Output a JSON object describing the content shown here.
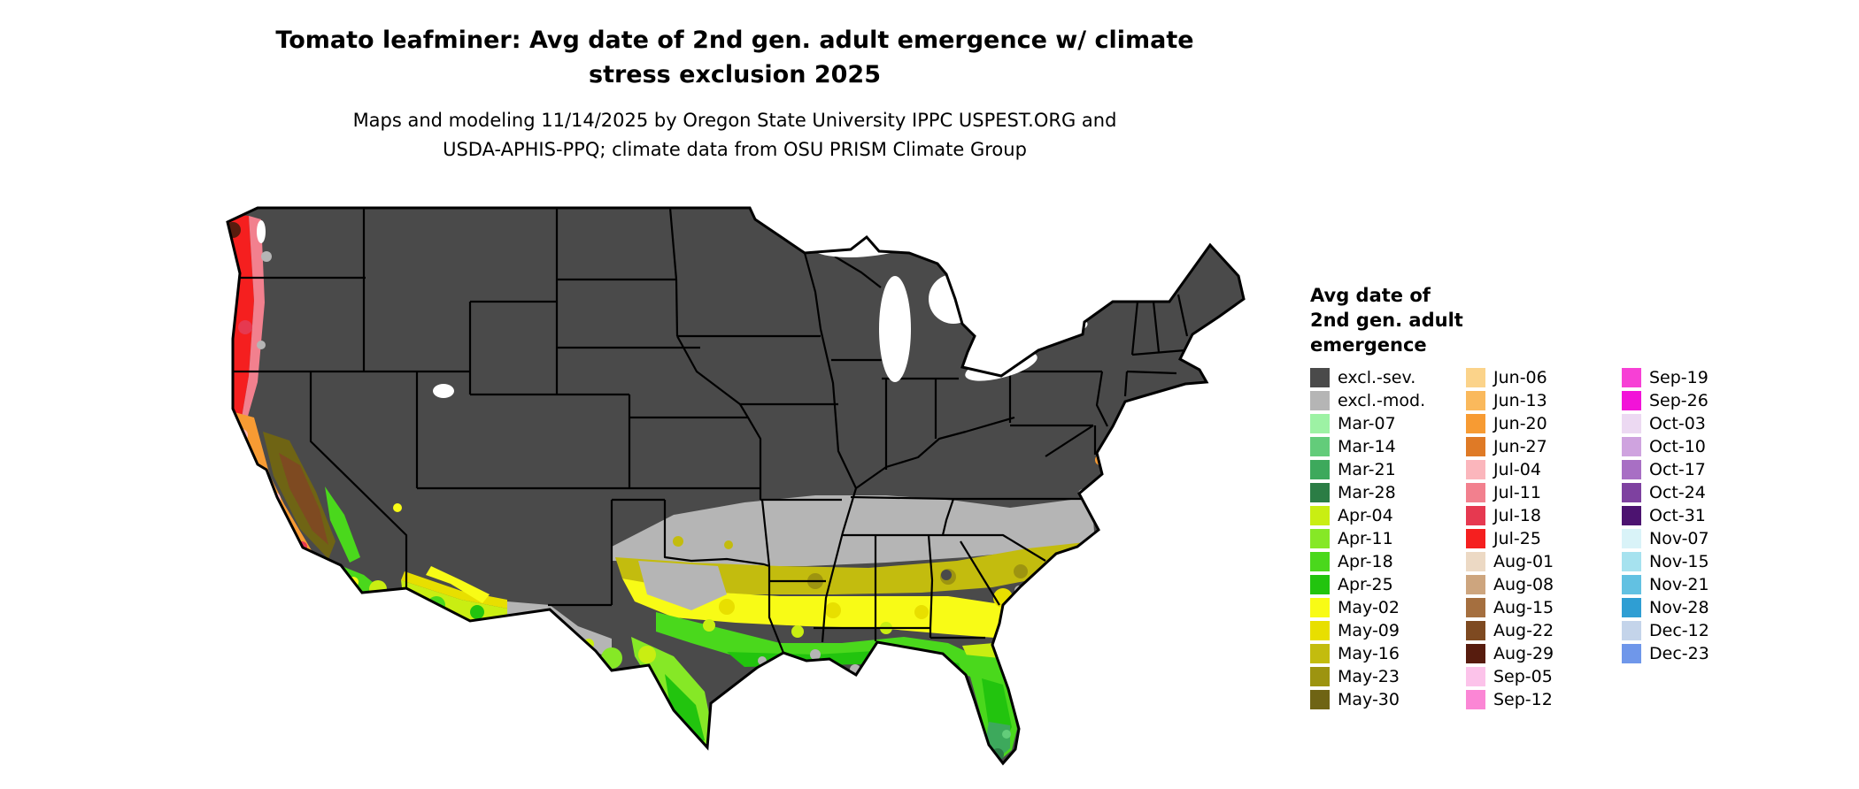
{
  "header": {
    "title_line1": "Tomato leafminer: Avg date of 2nd gen. adult emergence w/ climate",
    "title_line2": "stress exclusion 2025",
    "subtitle_line1": "Maps and modeling 11/14/2025 by Oregon State University IPPC USPEST.ORG and",
    "subtitle_line2": "USDA-APHIS-PPQ; climate data from OSU PRISM Climate Group"
  },
  "legend": {
    "title_lines": [
      "Avg date of",
      "2nd gen. adult",
      "emergence"
    ],
    "columns": [
      [
        "excl.-sev.",
        "excl.-mod.",
        "Mar-07",
        "Mar-14",
        "Mar-21",
        "Mar-28",
        "Apr-04",
        "Apr-11",
        "Apr-18",
        "Apr-25",
        "May-02",
        "May-09",
        "May-16",
        "May-23",
        "May-30"
      ],
      [
        "Jun-06",
        "Jun-13",
        "Jun-20",
        "Jun-27",
        "Jul-04",
        "Jul-11",
        "Jul-18",
        "Jul-25",
        "Aug-01",
        "Aug-08",
        "Aug-15",
        "Aug-22",
        "Aug-29",
        "Sep-05",
        "Sep-12"
      ],
      [
        "Sep-19",
        "Sep-26",
        "Oct-03",
        "Oct-10",
        "Oct-17",
        "Oct-24",
        "Oct-31",
        "Nov-07",
        "Nov-15",
        "Nov-21",
        "Nov-28",
        "Dec-12",
        "Dec-23"
      ]
    ]
  },
  "palette": {
    "excl.-sev.": "#4a4a4a",
    "excl.-mod.": "#b5b5b5",
    "Mar-07": "#9df2a4",
    "Mar-14": "#63cc7a",
    "Mar-21": "#3da95c",
    "Mar-28": "#2b7d45",
    "Apr-04": "#c9ee12",
    "Apr-11": "#86e826",
    "Apr-18": "#4ad81c",
    "Apr-25": "#22c40e",
    "May-02": "#f8fb16",
    "May-09": "#e8df00",
    "May-16": "#c3bc0e",
    "May-23": "#9d9410",
    "May-30": "#6f6414",
    "Jun-06": "#fbd38a",
    "Jun-13": "#fab95c",
    "Jun-20": "#f79b33",
    "Jun-27": "#df7a26",
    "Jul-04": "#fbb6bc",
    "Jul-11": "#f2808e",
    "Jul-18": "#e63950",
    "Jul-25": "#f51f1f",
    "Aug-01": "#ecd9c4",
    "Aug-08": "#cda57e",
    "Aug-15": "#a56f3f",
    "Aug-22": "#7e4a21",
    "Aug-29": "#571c0e",
    "Sep-05": "#fcc3ea",
    "Sep-12": "#fb86d5",
    "Sep-19": "#f740d5",
    "Sep-26": "#f213d8",
    "Oct-03": "#ecd9f2",
    "Oct-10": "#cfa3df",
    "Oct-17": "#a86fc4",
    "Oct-24": "#7e41a0",
    "Oct-31": "#4c1370",
    "Nov-07": "#d9f3f8",
    "Nov-15": "#a6e2ef",
    "Nov-21": "#62c1e2",
    "Nov-28": "#2f9ed3",
    "Dec-12": "#c4d4ea",
    "Dec-23": "#6f97ea",
    "water": "#ffffff"
  }
}
